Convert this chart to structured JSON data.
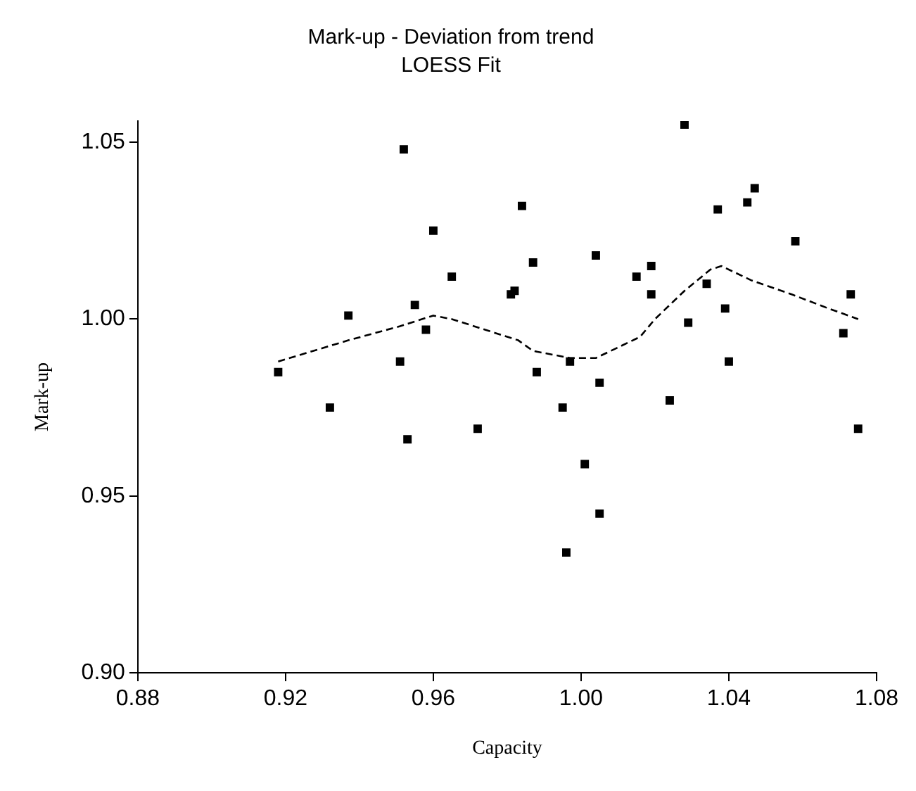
{
  "chart_data": {
    "type": "scatter",
    "title": "Mark-up - Deviation from trend",
    "subtitle": "LOESS Fit",
    "xlabel": "Capacity",
    "ylabel": "Mark-up",
    "xlim": [
      0.88,
      1.08
    ],
    "xticks": [
      {
        "value": 0.88,
        "label": "0.88"
      },
      {
        "value": 0.92,
        "label": "0.92"
      },
      {
        "value": 0.96,
        "label": "0.96"
      },
      {
        "value": 1.0,
        "label": "1.00"
      },
      {
        "value": 1.04,
        "label": "1.04"
      },
      {
        "value": 1.08,
        "label": "1.08"
      }
    ],
    "ylim": [
      0.9,
      1.056
    ],
    "yticks": [
      {
        "value": 0.9,
        "label": "0.90"
      },
      {
        "value": 0.95,
        "label": "0.95"
      },
      {
        "value": 1.0,
        "label": "1.00"
      },
      {
        "value": 1.05,
        "label": "1.05"
      }
    ],
    "grid": false,
    "legend": false,
    "marker": "square",
    "series": [
      {
        "type": "scatter",
        "color": "#000000",
        "x": [
          0.918,
          0.937,
          0.932,
          0.96,
          0.965,
          0.955,
          0.958,
          0.951,
          0.953,
          0.972,
          0.984,
          0.987,
          0.981,
          0.982,
          1.004,
          0.988,
          0.997,
          1.005,
          0.995,
          1.001,
          1.005,
          0.996,
          1.019,
          1.015,
          1.019,
          1.029,
          1.024,
          1.034,
          1.037,
          1.045,
          1.047,
          1.039,
          1.04,
          1.058,
          1.073,
          1.071,
          1.075,
          0.952,
          1.028
        ],
        "values": [
          0.985,
          1.001,
          0.975,
          1.025,
          1.012,
          1.004,
          0.997,
          0.988,
          0.966,
          0.969,
          1.032,
          1.016,
          1.007,
          1.008,
          1.018,
          0.985,
          0.988,
          0.982,
          0.975,
          0.959,
          0.945,
          0.934,
          1.015,
          1.012,
          1.007,
          0.999,
          0.977,
          1.01,
          1.031,
          1.033,
          1.037,
          1.003,
          0.988,
          1.022,
          1.007,
          0.996,
          0.969,
          1.048,
          1.055
        ]
      },
      {
        "type": "line",
        "color": "#000000",
        "marker": "none",
        "line_style": "dashed",
        "x": [
          0.918,
          0.937,
          0.951,
          0.96,
          0.965,
          0.974,
          0.983,
          0.987,
          0.997,
          1.004,
          1.008,
          1.016,
          1.02,
          1.028,
          1.035,
          1.038,
          1.046,
          1.057,
          1.067,
          1.075
        ],
        "values": [
          0.988,
          0.994,
          0.998,
          1.001,
          1.0,
          0.997,
          0.994,
          0.991,
          0.989,
          0.989,
          0.991,
          0.995,
          1.0,
          1.008,
          1.014,
          1.015,
          1.011,
          1.007,
          1.003,
          1.0
        ]
      }
    ]
  }
}
